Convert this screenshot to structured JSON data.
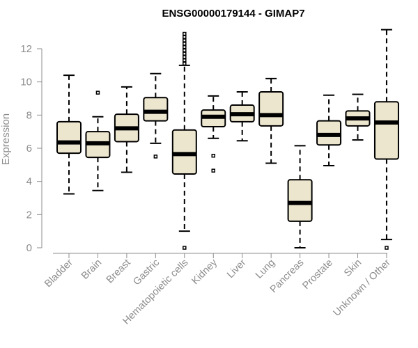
{
  "chart_data": {
    "type": "boxplot",
    "title": "ENSG00000179144 - GIMAP7",
    "ylabel": "Expression",
    "xlabel": "",
    "ylim": [
      0,
      13
    ],
    "yticks": [
      0,
      2,
      4,
      6,
      8,
      10,
      12
    ],
    "grid": false,
    "box_color": "#ede6cf",
    "categories": [
      "Bladder",
      "Brain",
      "Breast",
      "Gastric",
      "Hematopoietic cells",
      "Kidney",
      "Liver",
      "Lung",
      "Pancreas",
      "Prostate",
      "Skin",
      "Unknown / Other"
    ],
    "boxes": [
      {
        "low": 3.25,
        "q1": 5.7,
        "median": 6.35,
        "q3": 7.6,
        "high": 10.4,
        "outliers": []
      },
      {
        "low": 3.45,
        "q1": 5.45,
        "median": 6.3,
        "q3": 7.0,
        "high": 7.9,
        "outliers": [
          9.35
        ]
      },
      {
        "low": 4.55,
        "q1": 6.4,
        "median": 7.2,
        "q3": 8.05,
        "high": 9.7,
        "outliers": []
      },
      {
        "low": 6.3,
        "q1": 7.65,
        "median": 8.2,
        "q3": 9.05,
        "high": 10.5,
        "outliers": [
          5.5
        ]
      },
      {
        "low": 1.0,
        "q1": 4.45,
        "median": 5.65,
        "q3": 7.1,
        "high": 11.0,
        "outliers": [
          0.0,
          11.1,
          11.3,
          11.5,
          11.7,
          11.9,
          12.1,
          12.3,
          12.5,
          12.7,
          12.9
        ]
      },
      {
        "low": 6.6,
        "q1": 7.3,
        "median": 7.9,
        "q3": 8.3,
        "high": 9.15,
        "outliers": [
          5.55,
          4.65
        ]
      },
      {
        "low": 6.45,
        "q1": 7.6,
        "median": 8.05,
        "q3": 8.6,
        "high": 9.4,
        "outliers": []
      },
      {
        "low": 5.1,
        "q1": 7.35,
        "median": 8.0,
        "q3": 9.4,
        "high": 10.2,
        "outliers": []
      },
      {
        "low": 0.0,
        "q1": 1.6,
        "median": 2.7,
        "q3": 4.1,
        "high": 6.15,
        "outliers": []
      },
      {
        "low": 4.95,
        "q1": 6.2,
        "median": 6.8,
        "q3": 7.65,
        "high": 9.2,
        "outliers": []
      },
      {
        "low": 6.5,
        "q1": 7.35,
        "median": 7.8,
        "q3": 8.25,
        "high": 9.25,
        "outliers": []
      },
      {
        "low": 0.5,
        "q1": 5.35,
        "median": 7.55,
        "q3": 8.8,
        "high": 13.15,
        "outliers": [
          0.0
        ]
      }
    ]
  }
}
